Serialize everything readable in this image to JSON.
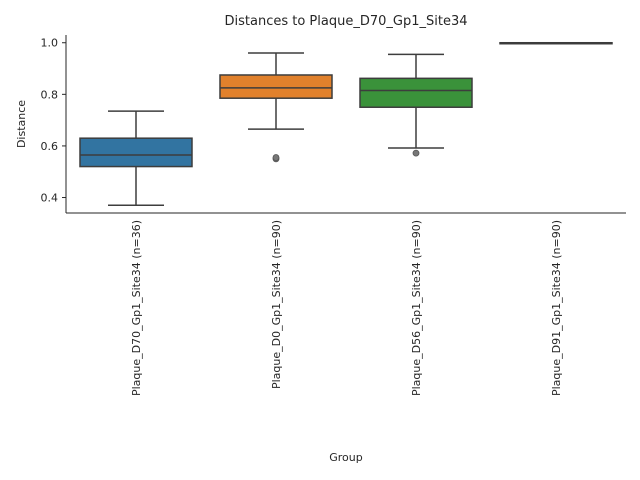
{
  "chart_data": {
    "type": "box",
    "title": "Distances to Plaque_D70_Gp1_Site34",
    "xlabel": "Group",
    "ylabel": "Distance",
    "ylim": [
      0.34,
      1.03
    ],
    "yticks": [
      0.4,
      0.6,
      0.8,
      1.0
    ],
    "ytick_labels": [
      "0.4",
      "0.6",
      "0.8",
      "1.0"
    ],
    "grid": false,
    "categories": [
      "Plaque_D70_Gp1_Site34 (n=36)",
      "Plaque_D0_Gp1_Site34 (n=90)",
      "Plaque_D56_Gp1_Site34 (n=90)",
      "Plaque_D91_Gp1_Site34 (n=90)"
    ],
    "boxes": [
      {
        "color": "#3274a1",
        "whisker_low": 0.37,
        "q1": 0.52,
        "median": 0.565,
        "q3": 0.63,
        "whisker_high": 0.735,
        "outliers": []
      },
      {
        "color": "#e1812c",
        "whisker_low": 0.665,
        "q1": 0.785,
        "median": 0.825,
        "q3": 0.875,
        "whisker_high": 0.96,
        "outliers": [
          0.55,
          0.555
        ]
      },
      {
        "color": "#3a923a",
        "whisker_low": 0.592,
        "q1": 0.75,
        "median": 0.815,
        "q3": 0.862,
        "whisker_high": 0.955,
        "outliers": [
          0.572
        ]
      },
      {
        "color": "#c03d3e",
        "whisker_low": 0.999,
        "q1": 0.999,
        "median": 0.999,
        "q3": 1.0,
        "whisker_high": 1.0,
        "outliers": []
      }
    ]
  }
}
